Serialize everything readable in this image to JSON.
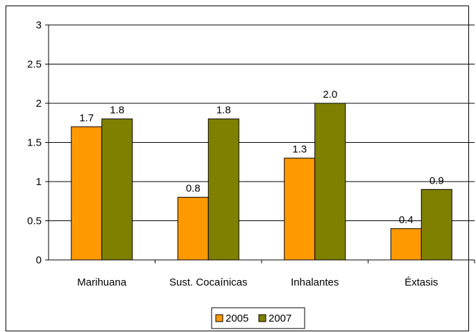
{
  "chart_data": {
    "type": "bar",
    "title": "",
    "xlabel": "",
    "ylabel": "",
    "categories": [
      "Marihuana",
      "Sust. Cocaínicas",
      "Inhalantes",
      "Éxtasis"
    ],
    "series": [
      {
        "name": "2005",
        "values": [
          1.7,
          0.8,
          1.3,
          0.4
        ],
        "labels": [
          "1.7",
          "0.8",
          "1.3",
          "0.4"
        ],
        "color": "#FF9900"
      },
      {
        "name": "2007",
        "values": [
          1.8,
          1.8,
          2.0,
          0.9
        ],
        "labels": [
          "1.8",
          "1.8",
          "2.0",
          "0.9"
        ],
        "color": "#808000"
      }
    ],
    "ylim": [
      0,
      3
    ],
    "yticks": [
      0,
      0.5,
      1,
      1.5,
      2,
      2.5,
      3
    ],
    "ytick_labels": [
      "0",
      "0.5",
      "1",
      "1.5",
      "2",
      "2.5",
      "3"
    ],
    "grid": "horizontal",
    "legend": "bottom-center"
  }
}
